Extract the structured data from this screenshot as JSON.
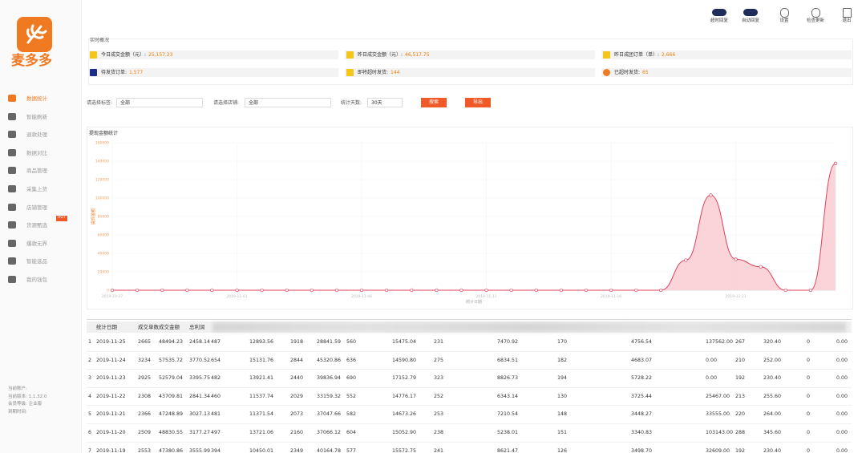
{
  "sidebar": {
    "logo": "麦多多",
    "menu": [
      "数据统计",
      "智能刷新",
      "退款处理",
      "数据对比",
      "商品管理",
      "采集上货",
      "店铺管理",
      "货源甄选",
      "爆款无界",
      "智能选品",
      "我的钱包"
    ],
    "hot": "HOT",
    "info": [
      "当前账户:",
      "当前版本: 1.1.32.0",
      "会员等级: 企业版",
      "到期时间:"
    ]
  },
  "toolbar": [
    "超时回复",
    "自动回复",
    "设置",
    "检查更新",
    "退出"
  ],
  "overview": {
    "title": "实时概况",
    "items": [
      {
        "label": "今日成交金额（元）:",
        "value": "25,157.23"
      },
      {
        "label": "昨日成交金额（元）:",
        "value": "46,517.75"
      },
      {
        "label": "昨日成团订单（单）:",
        "value": "2,666"
      },
      {
        "label": "待发货订单:",
        "value": "1,577"
      },
      {
        "label": "即将超时发货:",
        "value": "144"
      },
      {
        "label": "已超时发货:",
        "value": "65"
      }
    ]
  },
  "filters": {
    "tag_label": "请选择标签:",
    "tag_value": "全部",
    "shop_label": "请选择店铺:",
    "shop_value": "全部",
    "days_label": "统计天数:",
    "days_value": "30天",
    "search": "搜索",
    "export": "导出"
  },
  "chart_data": {
    "type": "line",
    "title": "提现金额统计",
    "y_label": "提现金额",
    "x_label": "统计日期",
    "categories": [
      "2019-10-27",
      null,
      null,
      null,
      null,
      "2019-11-01",
      null,
      null,
      null,
      null,
      "2019-11-06",
      null,
      null,
      null,
      null,
      "2019-11-11",
      null,
      null,
      null,
      null,
      "2019-11-16",
      null,
      null,
      null,
      null,
      "2019-11-21",
      null,
      null,
      null,
      null
    ],
    "values": [
      0,
      0,
      0,
      0,
      0,
      0,
      0,
      0,
      0,
      0,
      0,
      0,
      0,
      0,
      0,
      0,
      0,
      0,
      0,
      0,
      0,
      0,
      0,
      32609,
      103143,
      33555,
      25467,
      0,
      0,
      137562
    ],
    "color": "#e0405a",
    "ylim": [
      0,
      160000
    ],
    "yticks": [
      0,
      20000,
      40000,
      60000,
      80000,
      100000,
      120000,
      140000,
      160000
    ],
    "grid": true
  },
  "table": {
    "headers": [
      "统计日期",
      "成交单数",
      "成交金额",
      "总利润"
    ],
    "rows": [
      [
        "1",
        "2019-11-25",
        "2665",
        "48494.23",
        "2458.14",
        "487",
        "12893.56",
        "1918",
        "28841.59",
        "560",
        "15475.04",
        "231",
        "7470.92",
        "170",
        "4756.54",
        "137562.00",
        "267",
        "320.40",
        "0",
        "0.00"
      ],
      [
        "2",
        "2019-11-24",
        "3234",
        "57535.72",
        "3770.52",
        "654",
        "15131.76",
        "2844",
        "45320.86",
        "636",
        "14590.80",
        "275",
        "6834.51",
        "182",
        "4683.07",
        "0.00",
        "210",
        "252.00",
        "0",
        "0.00"
      ],
      [
        "3",
        "2019-11-23",
        "2925",
        "52579.04",
        "3395.75",
        "482",
        "13921.41",
        "2440",
        "39836.94",
        "690",
        "17152.79",
        "323",
        "8826.73",
        "194",
        "5728.22",
        "0.00",
        "192",
        "230.40",
        "0",
        "0.00"
      ],
      [
        "4",
        "2019-11-22",
        "2308",
        "43709.81",
        "2841.34",
        "460",
        "11537.74",
        "2029",
        "33159.32",
        "552",
        "14776.17",
        "252",
        "6343.14",
        "130",
        "3725.44",
        "25467.00",
        "213",
        "255.60",
        "0",
        "0.00"
      ],
      [
        "5",
        "2019-11-21",
        "2366",
        "47248.89",
        "3027.13",
        "481",
        "11371.54",
        "2073",
        "37047.66",
        "582",
        "14673.26",
        "253",
        "7210.54",
        "148",
        "3448.27",
        "33555.00",
        "220",
        "264.00",
        "0",
        "0.00"
      ],
      [
        "6",
        "2019-11-20",
        "2509",
        "48830.55",
        "3177.27",
        "497",
        "13721.06",
        "2160",
        "37066.12",
        "604",
        "15052.90",
        "238",
        "5238.01",
        "151",
        "3340.83",
        "103143.00",
        "288",
        "345.60",
        "0",
        "0.00"
      ],
      [
        "7",
        "2019-11-19",
        "2553",
        "47380.86",
        "3555.99",
        "394",
        "10450.01",
        "2349",
        "40164.78",
        "577",
        "15572.75",
        "241",
        "8621.47",
        "126",
        "3498.70",
        "32609.00",
        "192",
        "230.40",
        "0",
        "0.00"
      ]
    ]
  }
}
